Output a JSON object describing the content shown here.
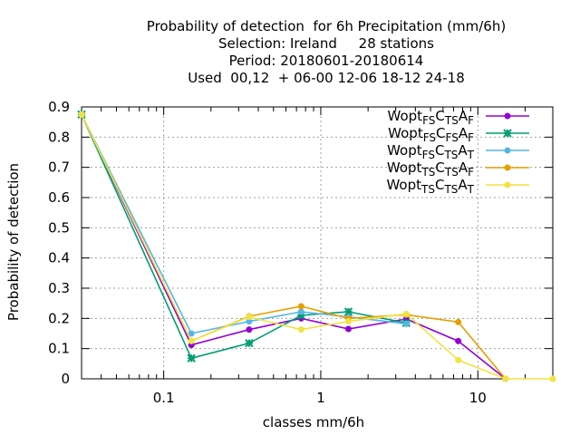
{
  "chart_data": {
    "type": "line",
    "title_lines": [
      "Probability of detection  for 6h Precipitation (mm/6h)",
      "Selection: Ireland     28 stations",
      "Period: 20180601-20180614",
      "Used  00,12  + 06-00 12-06 18-12 24-18"
    ],
    "xlabel": "classes mm/6h",
    "ylabel": "Probability of detection",
    "x_scale": "log",
    "xlim": [
      0.03,
      30
    ],
    "ylim": [
      0,
      0.9
    ],
    "grid": true,
    "legend_position": "top-right",
    "x_ticks": [
      {
        "value": 0.1,
        "label": "0.1"
      },
      {
        "value": 1,
        "label": "1"
      },
      {
        "value": 10,
        "label": "10"
      }
    ],
    "y_ticks": [
      {
        "value": 0,
        "label": "0"
      },
      {
        "value": 0.1,
        "label": "0.1"
      },
      {
        "value": 0.2,
        "label": "0.2"
      },
      {
        "value": 0.3,
        "label": "0.3"
      },
      {
        "value": 0.4,
        "label": "0.4"
      },
      {
        "value": 0.5,
        "label": "0.5"
      },
      {
        "value": 0.6,
        "label": "0.6"
      },
      {
        "value": 0.7,
        "label": "0.7"
      },
      {
        "value": 0.8,
        "label": "0.8"
      },
      {
        "value": 0.9,
        "label": "0.9"
      }
    ],
    "x": [
      0.03,
      0.15,
      0.35,
      0.75,
      1.5,
      3.5,
      7.5,
      15,
      30
    ],
    "series": [
      {
        "name_parts": [
          [
            "Wopt",
            ""
          ],
          [
            "FS",
            "sub"
          ],
          [
            "C",
            ""
          ],
          [
            "TS",
            "sub"
          ],
          [
            "A",
            ""
          ],
          [
            "F",
            "sub"
          ]
        ],
        "color": "#9400d3",
        "marker": "circle",
        "values": [
          0.875,
          0.112,
          0.163,
          0.2,
          0.165,
          0.198,
          0.125,
          0.0,
          null
        ]
      },
      {
        "name_parts": [
          [
            "Wopt",
            ""
          ],
          [
            "FS",
            "sub"
          ],
          [
            "C",
            ""
          ],
          [
            "FS",
            "sub"
          ],
          [
            "A",
            ""
          ],
          [
            "F",
            "sub"
          ]
        ],
        "color": "#009e73",
        "marker": "cross",
        "values": [
          0.875,
          0.068,
          0.118,
          0.21,
          0.222,
          0.185,
          null,
          null,
          null
        ]
      },
      {
        "name_parts": [
          [
            "Wopt",
            ""
          ],
          [
            "FS",
            "sub"
          ],
          [
            "C",
            ""
          ],
          [
            "TS",
            "sub"
          ],
          [
            "A",
            ""
          ],
          [
            "T",
            "sub"
          ]
        ],
        "color": "#56b4e9",
        "marker": "circle",
        "values": [
          0.875,
          0.15,
          0.19,
          0.222,
          0.205,
          0.182,
          null,
          null,
          null
        ]
      },
      {
        "name_parts": [
          [
            "Wopt",
            ""
          ],
          [
            "TS",
            "sub"
          ],
          [
            "C",
            ""
          ],
          [
            "TS",
            "sub"
          ],
          [
            "A",
            ""
          ],
          [
            "F",
            "sub"
          ]
        ],
        "color": "#e69f00",
        "marker": "circle",
        "values": [
          0.875,
          0.125,
          0.207,
          0.24,
          0.2,
          0.212,
          0.188,
          0.0,
          null
        ]
      },
      {
        "name_parts": [
          [
            "Wopt",
            ""
          ],
          [
            "TS",
            "sub"
          ],
          [
            "C",
            ""
          ],
          [
            "TS",
            "sub"
          ],
          [
            "A",
            ""
          ],
          [
            "T",
            "sub"
          ]
        ],
        "color": "#f0e442",
        "marker": "circle",
        "values": [
          0.875,
          0.125,
          0.205,
          0.163,
          0.19,
          0.215,
          0.062,
          0.0,
          0.0
        ]
      }
    ]
  }
}
